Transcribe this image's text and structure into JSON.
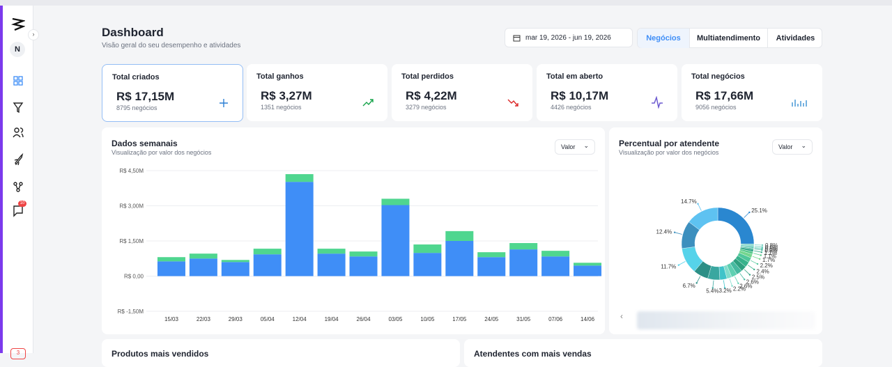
{
  "sidebar": {
    "avatar": "N",
    "badge": "10",
    "footer_badge": "3"
  },
  "header": {
    "title": "Dashboard",
    "subtitle": "Visão geral do seu desempenho e atividades",
    "date_range": "mar 19, 2026 - jun 19, 2026",
    "tabs": [
      "Negócios",
      "Multiatendimento",
      "Atividades"
    ]
  },
  "kpis": [
    {
      "label": "Total criados",
      "value": "R$ 17,15M",
      "sub": "8795 negócios"
    },
    {
      "label": "Total ganhos",
      "value": "R$ 3,27M",
      "sub": "1351 negócios"
    },
    {
      "label": "Total perdidos",
      "value": "R$ 4,22M",
      "sub": "3279 negócios"
    },
    {
      "label": "Total em aberto",
      "value": "R$ 10,17M",
      "sub": "4426 negócios"
    },
    {
      "label": "Total negócios",
      "value": "R$ 17,66M",
      "sub": "9056 negócios"
    }
  ],
  "weekly": {
    "title": "Dados semanais",
    "subtitle": "Visualização por valor dos negócios",
    "select": "Valor",
    "chart": {
      "type": "bar",
      "stacked": true,
      "categories": [
        "15/03",
        "22/03",
        "29/03",
        "05/04",
        "12/04",
        "19/04",
        "26/04",
        "03/05",
        "10/05",
        "17/05",
        "24/05",
        "31/05",
        "07/06",
        "14/06"
      ],
      "series": [
        {
          "color": "#3f8ef7",
          "values": [
            0.63,
            0.75,
            0.6,
            0.93,
            4.02,
            0.96,
            0.84,
            3.03,
            0.99,
            1.5,
            0.81,
            1.14,
            0.84,
            0.45
          ]
        },
        {
          "color": "#4fd68f",
          "values": [
            0.18,
            0.21,
            0.09,
            0.24,
            0.33,
            0.21,
            0.21,
            0.27,
            0.36,
            0.42,
            0.21,
            0.27,
            0.24,
            0.12
          ]
        }
      ],
      "ylim": [
        -1.5,
        4.5
      ],
      "yticks": [
        {
          "value": 4.5,
          "label": "R$ 4,50M"
        },
        {
          "value": 3,
          "label": "R$ 3,00M"
        },
        {
          "value": 1.5,
          "label": "R$ 1,50M"
        },
        {
          "value": 0,
          "label": "R$ 0,00"
        },
        {
          "value": -1.5,
          "label": "R$ -1,50M"
        }
      ],
      "grid": true
    }
  },
  "share": {
    "title": "Percentual por atendente",
    "subtitle": "Visualização por valor dos negócios",
    "select": "Valor",
    "chart": {
      "type": "pie",
      "donut": true,
      "values": [
        25.1,
        0.8,
        0.6,
        0.5,
        0.5,
        1.1,
        1.1,
        1.7,
        2.2,
        2.4,
        2.5,
        2.6,
        2.6,
        2.2,
        3.2,
        5.4,
        6.7,
        11.7,
        12.4,
        14.7
      ],
      "value_labels": [
        "25.1%",
        "0.8%",
        "0.6%",
        "0.5%",
        "0.5%",
        "1.1%",
        "1.1%",
        "1.7%",
        "2.2%",
        "2.4%",
        "2.5%",
        "2.6%",
        "2.6%",
        "2.2%",
        "3.2%",
        "5.4%",
        "6.7%",
        "11.7%",
        "12.4%",
        "14.7%"
      ],
      "colors": [
        "#2a87d0",
        "#7bd3c6",
        "#5cc9b8",
        "#49c0a8",
        "#3db59a",
        "#35a889",
        "#55c98a",
        "#74d68e",
        "#4fc79a",
        "#38b28c",
        "#2ea080",
        "#46b9a0",
        "#5fd0b2",
        "#80dccb",
        "#3fc3c9",
        "#3aa7a0",
        "#2c8f86",
        "#56d3ea",
        "#3c8fbe",
        "#5ec2f1"
      ]
    }
  },
  "bottom": [
    "Produtos mais vendidos",
    "Atendentes com mais vendas"
  ]
}
